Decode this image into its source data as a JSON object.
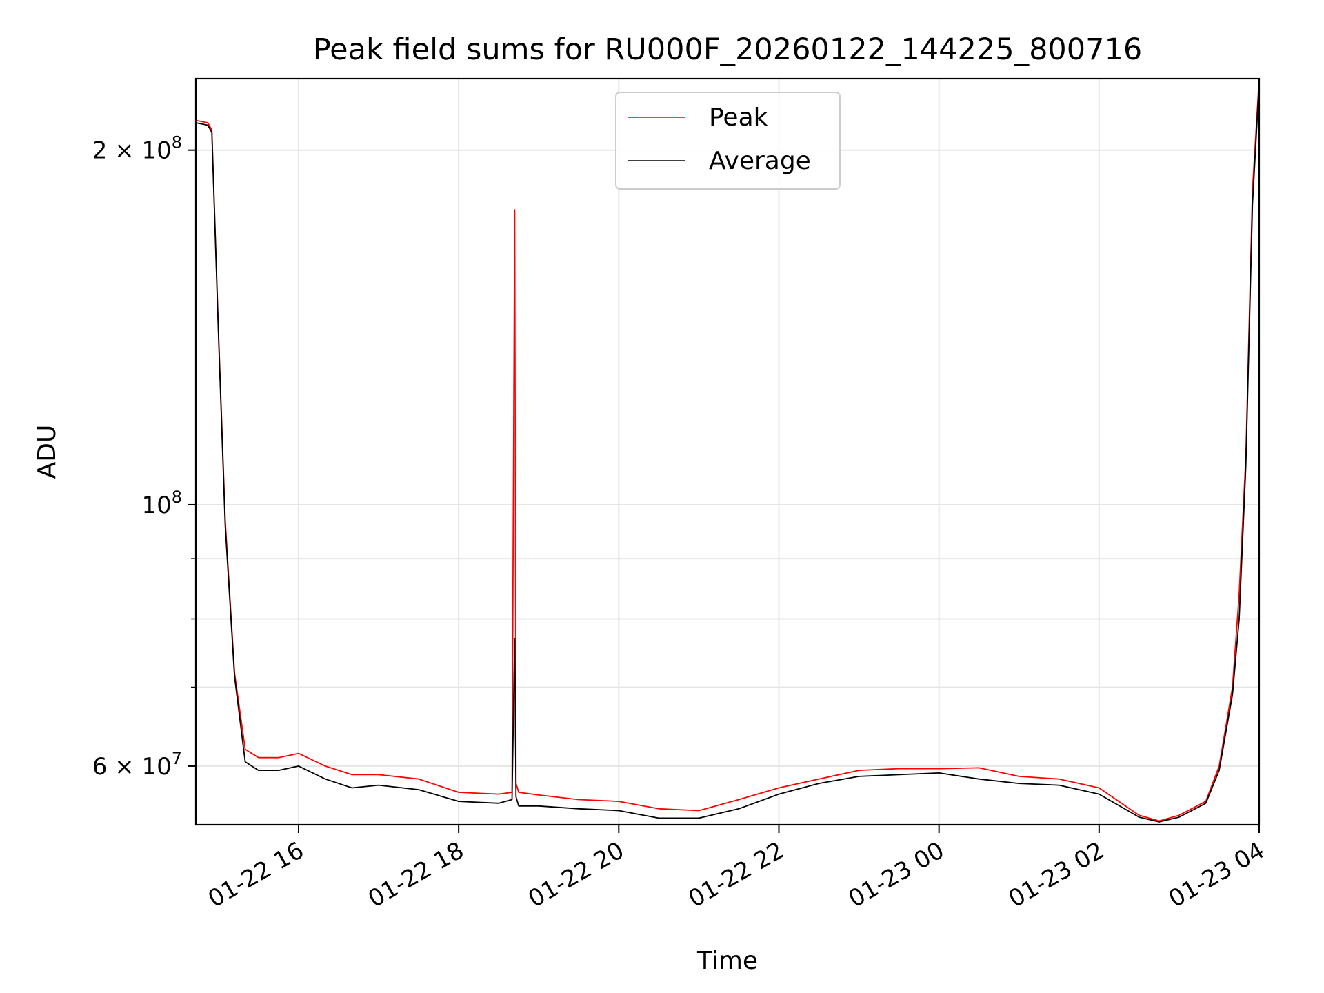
{
  "chart_data": {
    "type": "line",
    "title": "Peak field sums for RU000F_20260122_144225_800716",
    "xlabel": "Time",
    "ylabel": "ADU",
    "x_scale": "time",
    "y_scale": "log",
    "xlim": [
      "2026-01-22 14:43",
      "2026-01-23 04:00"
    ],
    "ylim": [
      53500000,
      230000000
    ],
    "grid": true,
    "legend_position": "top-center",
    "x_ticks": [
      {
        "value": "2026-01-22 16:00",
        "label": "01-22 16"
      },
      {
        "value": "2026-01-22 18:00",
        "label": "01-22 18"
      },
      {
        "value": "2026-01-22 20:00",
        "label": "01-22 20"
      },
      {
        "value": "2026-01-22 22:00",
        "label": "01-22 22"
      },
      {
        "value": "2026-01-23 00:00",
        "label": "01-23 00"
      },
      {
        "value": "2026-01-23 02:00",
        "label": "01-23 02"
      },
      {
        "value": "2026-01-23 04:00",
        "label": "01-23 04"
      }
    ],
    "y_major_ticks": [
      {
        "value": 60000000,
        "label": "6 × 10^7",
        "mantissa": "6 × 10",
        "exp": "7"
      },
      {
        "value": 100000000,
        "label": "10^8",
        "mantissa": "10",
        "exp": "8"
      },
      {
        "value": 200000000,
        "label": "2 × 10^8",
        "mantissa": "2 × 10",
        "exp": "8"
      }
    ],
    "y_minor_ticks": [
      70000000,
      80000000,
      90000000
    ],
    "series": [
      {
        "name": "Peak",
        "color": "#ff0000",
        "x": [
          "2026-01-22 14:43",
          "2026-01-22 14:52",
          "2026-01-22 14:55",
          "2026-01-22 15:00",
          "2026-01-22 15:05",
          "2026-01-22 15:12",
          "2026-01-22 15:20",
          "2026-01-22 15:30",
          "2026-01-22 15:45",
          "2026-01-22 16:00",
          "2026-01-22 16:20",
          "2026-01-22 16:40",
          "2026-01-22 17:00",
          "2026-01-22 17:30",
          "2026-01-22 18:00",
          "2026-01-22 18:30",
          "2026-01-22 18:40",
          "2026-01-22 18:42",
          "2026-01-22 18:43",
          "2026-01-22 18:45",
          "2026-01-22 19:00",
          "2026-01-22 19:30",
          "2026-01-22 20:00",
          "2026-01-22 20:30",
          "2026-01-22 21:00",
          "2026-01-22 21:30",
          "2026-01-22 22:00",
          "2026-01-22 22:30",
          "2026-01-22 23:00",
          "2026-01-22 23:30",
          "2026-01-23 00:00",
          "2026-01-23 00:30",
          "2026-01-23 01:00",
          "2026-01-23 01:30",
          "2026-01-23 02:00",
          "2026-01-23 02:30",
          "2026-01-23 02:45",
          "2026-01-23 03:00",
          "2026-01-23 03:20",
          "2026-01-23 03:30",
          "2026-01-23 03:40",
          "2026-01-23 03:45",
          "2026-01-23 03:50",
          "2026-01-23 03:55",
          "2026-01-23 04:00"
        ],
        "values": [
          212000000,
          211000000,
          208000000,
          140000000,
          97000000,
          72000000,
          62000000,
          61000000,
          61000000,
          61500000,
          60000000,
          59000000,
          59000000,
          58500000,
          57000000,
          56800000,
          57000000,
          178000000,
          58000000,
          57000000,
          56700000,
          56200000,
          56000000,
          55200000,
          55000000,
          56200000,
          57500000,
          58500000,
          59500000,
          59700000,
          59700000,
          59800000,
          58800000,
          58500000,
          57500000,
          54500000,
          53900000,
          54500000,
          56000000,
          60000000,
          70000000,
          84000000,
          110000000,
          185000000,
          230000000
        ]
      },
      {
        "name": "Average",
        "color": "#000000",
        "x": [
          "2026-01-22 14:43",
          "2026-01-22 14:52",
          "2026-01-22 14:55",
          "2026-01-22 15:00",
          "2026-01-22 15:05",
          "2026-01-22 15:12",
          "2026-01-22 15:20",
          "2026-01-22 15:30",
          "2026-01-22 15:45",
          "2026-01-22 16:00",
          "2026-01-22 16:20",
          "2026-01-22 16:40",
          "2026-01-22 17:00",
          "2026-01-22 17:30",
          "2026-01-22 18:00",
          "2026-01-22 18:30",
          "2026-01-22 18:40",
          "2026-01-22 18:42",
          "2026-01-22 18:43",
          "2026-01-22 18:45",
          "2026-01-22 19:00",
          "2026-01-22 19:30",
          "2026-01-22 20:00",
          "2026-01-22 20:30",
          "2026-01-22 21:00",
          "2026-01-22 21:30",
          "2026-01-22 22:00",
          "2026-01-22 22:30",
          "2026-01-22 23:00",
          "2026-01-22 23:30",
          "2026-01-23 00:00",
          "2026-01-23 00:30",
          "2026-01-23 01:00",
          "2026-01-23 01:30",
          "2026-01-23 02:00",
          "2026-01-23 02:30",
          "2026-01-23 02:45",
          "2026-01-23 03:00",
          "2026-01-23 03:20",
          "2026-01-23 03:30",
          "2026-01-23 03:40",
          "2026-01-23 03:45",
          "2026-01-23 03:50",
          "2026-01-23 03:55",
          "2026-01-23 04:00"
        ],
        "values": [
          211000000,
          210000000,
          207000000,
          139000000,
          96000000,
          71500000,
          60500000,
          59500000,
          59500000,
          60000000,
          58500000,
          57500000,
          57800000,
          57300000,
          56000000,
          55800000,
          56200000,
          77000000,
          56500000,
          55500000,
          55500000,
          55200000,
          55000000,
          54200000,
          54200000,
          55200000,
          56800000,
          58000000,
          58800000,
          59000000,
          59200000,
          58500000,
          58000000,
          57800000,
          56800000,
          54300000,
          53800000,
          54300000,
          55800000,
          59500000,
          69000000,
          80000000,
          108000000,
          180000000,
          228000000
        ]
      }
    ]
  }
}
